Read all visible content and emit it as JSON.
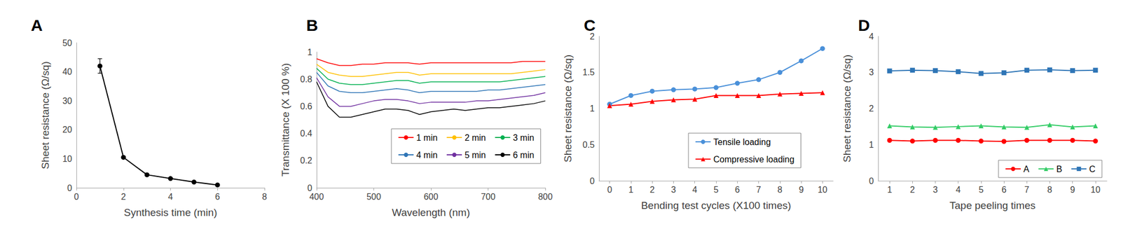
{
  "chart_data": [
    {
      "title": "A",
      "type": "line",
      "x": [
        1,
        2,
        3,
        4,
        5,
        6
      ],
      "values": [
        42,
        10.5,
        4.5,
        3.2,
        2,
        1
      ],
      "error": [
        2.5,
        null,
        null,
        null,
        null,
        null
      ],
      "color": "#000000",
      "marker": "circle",
      "xlabel": "Synthesis time (min)",
      "ylabel": "Sheet resistance (Ω/sq)",
      "xlim": [
        0,
        8
      ],
      "xticks": [
        0,
        2,
        4,
        6,
        8
      ],
      "ylim": [
        0,
        50
      ],
      "yticks": [
        0,
        10,
        20,
        30,
        40,
        50
      ],
      "grid": false
    },
    {
      "title": "B",
      "type": "line",
      "x": [
        400,
        420,
        440,
        460,
        480,
        500,
        520,
        540,
        560,
        580,
        600,
        620,
        640,
        660,
        680,
        700,
        720,
        740,
        760,
        780,
        800
      ],
      "series": [
        {
          "name": "1 min",
          "color": "#ff0000",
          "values": [
            0.95,
            0.92,
            0.9,
            0.9,
            0.91,
            0.91,
            0.92,
            0.92,
            0.92,
            0.91,
            0.92,
            0.92,
            0.92,
            0.92,
            0.92,
            0.92,
            0.92,
            0.92,
            0.93,
            0.93,
            0.93
          ]
        },
        {
          "name": "2 min",
          "color": "#ffc000",
          "values": [
            0.91,
            0.85,
            0.83,
            0.82,
            0.82,
            0.83,
            0.84,
            0.85,
            0.85,
            0.83,
            0.84,
            0.84,
            0.84,
            0.84,
            0.84,
            0.84,
            0.84,
            0.84,
            0.85,
            0.86,
            0.87
          ]
        },
        {
          "name": "3 min",
          "color": "#00b050",
          "values": [
            0.88,
            0.8,
            0.77,
            0.76,
            0.76,
            0.77,
            0.78,
            0.79,
            0.79,
            0.77,
            0.78,
            0.78,
            0.78,
            0.78,
            0.78,
            0.78,
            0.78,
            0.79,
            0.8,
            0.81,
            0.82
          ]
        },
        {
          "name": "4 min",
          "color": "#2e75b6",
          "values": [
            0.85,
            0.75,
            0.71,
            0.7,
            0.7,
            0.71,
            0.72,
            0.73,
            0.72,
            0.7,
            0.71,
            0.71,
            0.71,
            0.71,
            0.71,
            0.72,
            0.72,
            0.73,
            0.74,
            0.75,
            0.76
          ]
        },
        {
          "name": "5 min",
          "color": "#7030a0",
          "values": [
            0.81,
            0.67,
            0.6,
            0.6,
            0.62,
            0.64,
            0.65,
            0.65,
            0.64,
            0.62,
            0.63,
            0.63,
            0.63,
            0.63,
            0.64,
            0.64,
            0.65,
            0.66,
            0.67,
            0.68,
            0.7
          ]
        },
        {
          "name": "6 min",
          "color": "#000000",
          "values": [
            0.78,
            0.6,
            0.52,
            0.52,
            0.54,
            0.56,
            0.58,
            0.58,
            0.57,
            0.54,
            0.56,
            0.57,
            0.58,
            0.57,
            0.58,
            0.59,
            0.59,
            0.6,
            0.61,
            0.62,
            0.64
          ]
        }
      ],
      "marker": "none",
      "xlabel": "Wavelength (nm)",
      "ylabel": "Transmittance (X 100 %)",
      "xlim": [
        400,
        800
      ],
      "xticks": [
        400,
        500,
        600,
        700,
        800
      ],
      "ylim": [
        0,
        1
      ],
      "yticks": [
        0,
        0.2,
        0.4,
        0.6,
        0.8,
        1
      ],
      "legend": "lower right",
      "grid": false
    },
    {
      "title": "C",
      "type": "line",
      "categories": [
        "0",
        "1",
        "2",
        "3",
        "4",
        "5",
        "6",
        "7",
        "8",
        "9",
        "10"
      ],
      "series": [
        {
          "name": "Tensile loading",
          "color": "#4a90d9",
          "marker": "circle",
          "values": [
            1.06,
            1.18,
            1.24,
            1.26,
            1.27,
            1.29,
            1.35,
            1.4,
            1.5,
            1.66,
            1.83
          ]
        },
        {
          "name": "Compressive loading",
          "color": "#ff0000",
          "marker": "triangle",
          "values": [
            1.04,
            1.06,
            1.1,
            1.12,
            1.13,
            1.18,
            1.18,
            1.18,
            1.2,
            1.21,
            1.22
          ]
        }
      ],
      "xlabel": "Bending test cycles (X100 times)",
      "ylabel": "Sheet resistance (Ω/sq)",
      "ylim": [
        0,
        2
      ],
      "yticks": [
        0,
        0.5,
        1,
        1.5,
        2
      ],
      "legend": "lower right",
      "grid": false
    },
    {
      "title": "D",
      "type": "line",
      "categories": [
        "1",
        "2",
        "3",
        "4",
        "5",
        "6",
        "7",
        "8",
        "9",
        "10"
      ],
      "series": [
        {
          "name": "A",
          "color": "#ff0000",
          "marker": "circle",
          "values": [
            1.12,
            1.1,
            1.12,
            1.12,
            1.1,
            1.09,
            1.12,
            1.12,
            1.12,
            1.1
          ]
        },
        {
          "name": "B",
          "color": "#33cc66",
          "marker": "triangle",
          "values": [
            1.52,
            1.49,
            1.48,
            1.5,
            1.52,
            1.49,
            1.48,
            1.55,
            1.49,
            1.52
          ]
        },
        {
          "name": "C",
          "color": "#2e75b6",
          "marker": "square",
          "values": [
            3.04,
            3.06,
            3.05,
            3.02,
            2.97,
            2.99,
            3.06,
            3.07,
            3.05,
            3.06
          ]
        }
      ],
      "xlabel": "Tape peeling times",
      "ylabel": "Sheet resistance (Ω/sq)",
      "ylim": [
        0,
        4
      ],
      "yticks": [
        0,
        1,
        2,
        3,
        4
      ],
      "legend": "lower right",
      "grid": false
    }
  ]
}
